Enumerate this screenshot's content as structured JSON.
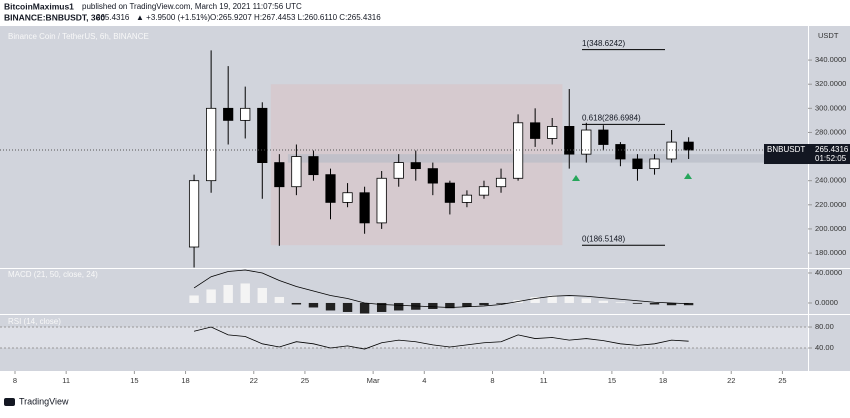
{
  "header": {
    "publisher": "BitcoinMaximus1",
    "published": "published on TradingView.com, March 19, 2021 11:07:56 UTC",
    "symbol_line": "BINANCE:BNBUSDT, 360",
    "price": 265.4316,
    "change": "▲ +3.9500 (+1.51%)",
    "ohlc": "O:265.9207 H:267.4453 L:260.6110 C:265.4316"
  },
  "footer": "TradingView",
  "chart_data": {
    "type": "candlestick",
    "title": "Binance Coin / TetherUS, 6h, BINANCE",
    "unit": "USDT",
    "x": [
      10.5,
      11.5,
      12.5,
      13.5,
      14.5,
      15.5,
      16.5,
      17.5,
      18.5,
      19.5,
      20.5,
      21.5,
      22.5,
      23.5,
      24.5,
      25.5,
      26.5,
      27.5,
      28.5,
      29.5,
      30.5,
      31.5,
      32.5,
      33.5,
      34.5,
      35.5,
      36.5,
      37.5,
      38.5,
      39.5
    ],
    "open": [
      185,
      240,
      300,
      290,
      300,
      255,
      235,
      260,
      245,
      222,
      230,
      205,
      242,
      255,
      250,
      238,
      222,
      228,
      235,
      242,
      288,
      275,
      285,
      262,
      282,
      270,
      258,
      250,
      258,
      272
    ],
    "high": [
      245,
      348,
      335,
      318,
      305,
      262,
      270,
      265,
      250,
      238,
      235,
      248,
      262,
      265,
      255,
      240,
      232,
      240,
      250,
      295,
      300,
      292,
      316,
      288,
      286,
      272,
      262,
      262,
      282,
      276
    ],
    "low": [
      168,
      230,
      270,
      275,
      225,
      186,
      228,
      240,
      208,
      218,
      196,
      200,
      235,
      240,
      228,
      212,
      218,
      225,
      230,
      240,
      268,
      270,
      250,
      255,
      265,
      252,
      240,
      245,
      255,
      258
    ],
    "close": [
      240,
      300,
      290,
      300,
      255,
      235,
      260,
      245,
      222,
      230,
      205,
      242,
      255,
      250,
      238,
      222,
      228,
      235,
      242,
      288,
      275,
      285,
      262,
      282,
      270,
      258,
      250,
      258,
      272,
      265.4316
    ],
    "up_color": "#ffffff",
    "down_color": "#000000",
    "xlim": [
      -0.88,
      46.5
    ],
    "xticks": [
      {
        "value": 0,
        "label": "8"
      },
      {
        "value": 3,
        "label": "11"
      },
      {
        "value": 7,
        "label": "15"
      },
      {
        "value": 10,
        "label": "18"
      },
      {
        "value": 14,
        "label": "22"
      },
      {
        "value": 17,
        "label": "25"
      },
      {
        "value": 21,
        "label": "Mar"
      },
      {
        "value": 24,
        "label": "4"
      },
      {
        "value": 28,
        "label": "8"
      },
      {
        "value": 31,
        "label": "11"
      },
      {
        "value": 35,
        "label": "15"
      },
      {
        "value": 38,
        "label": "18"
      },
      {
        "value": 42,
        "label": "22"
      },
      {
        "value": 45,
        "label": "25"
      }
    ],
    "ylim": [
      167.6,
      366.6
    ],
    "yticks": [
      {
        "value": 180,
        "label": "180.0000"
      },
      {
        "value": 200,
        "label": "200.0000"
      },
      {
        "value": 220,
        "label": "220.0000"
      },
      {
        "value": 240,
        "label": "240.0000"
      },
      {
        "value": 260,
        "label": "260.0000"
      },
      {
        "value": 280,
        "label": "280.0000"
      },
      {
        "value": 300,
        "label": "300.0000"
      },
      {
        "value": 320,
        "label": "320.0000"
      },
      {
        "value": 340,
        "label": "340.0000"
      }
    ],
    "fib_levels": [
      {
        "label": "1(348.6242)",
        "value": 348.6242
      },
      {
        "label": "0.618(286.6984)",
        "value": 286.6984
      },
      {
        "label": "0(186.5148)",
        "value": 186.5148
      }
    ],
    "last_price": {
      "symbol": "BNBUSDT",
      "value": 265.4316,
      "countdown": "01:52:05"
    },
    "macd": {
      "title": "MACD (21, 50, close, 24)",
      "ylim": [
        -14.7,
        45.3
      ],
      "yticks": [
        {
          "value": 0,
          "label": "0.0000"
        },
        {
          "value": 40,
          "label": "40.0000"
        }
      ],
      "histogram": [
        10,
        18,
        24,
        26,
        20,
        8,
        -2,
        -6,
        -10,
        -12,
        -14,
        -12,
        -10,
        -9,
        -8,
        -7,
        -5,
        -3,
        -1,
        4,
        8,
        10,
        8,
        6,
        3,
        1,
        -1,
        -2,
        -3,
        -3
      ],
      "line": [
        20,
        35,
        42,
        44,
        40,
        30,
        22,
        16,
        10,
        6,
        0,
        -2,
        -3,
        -4,
        -5,
        -6,
        -5,
        -4,
        -2,
        2,
        6,
        9,
        10,
        9,
        7,
        5,
        3,
        1,
        0,
        -1
      ]
    },
    "rsi": {
      "title": "RSI (14, close)",
      "ylim": [
        -1.9,
        102.9
      ],
      "yticks": [
        {
          "value": 40,
          "label": "40.00"
        },
        {
          "value": 80,
          "label": "80.00"
        }
      ],
      "values": [
        72,
        80,
        65,
        62,
        48,
        42,
        52,
        48,
        40,
        44,
        38,
        50,
        55,
        52,
        46,
        42,
        46,
        50,
        52,
        65,
        58,
        60,
        55,
        58,
        54,
        48,
        45,
        48,
        55,
        53
      ]
    }
  }
}
